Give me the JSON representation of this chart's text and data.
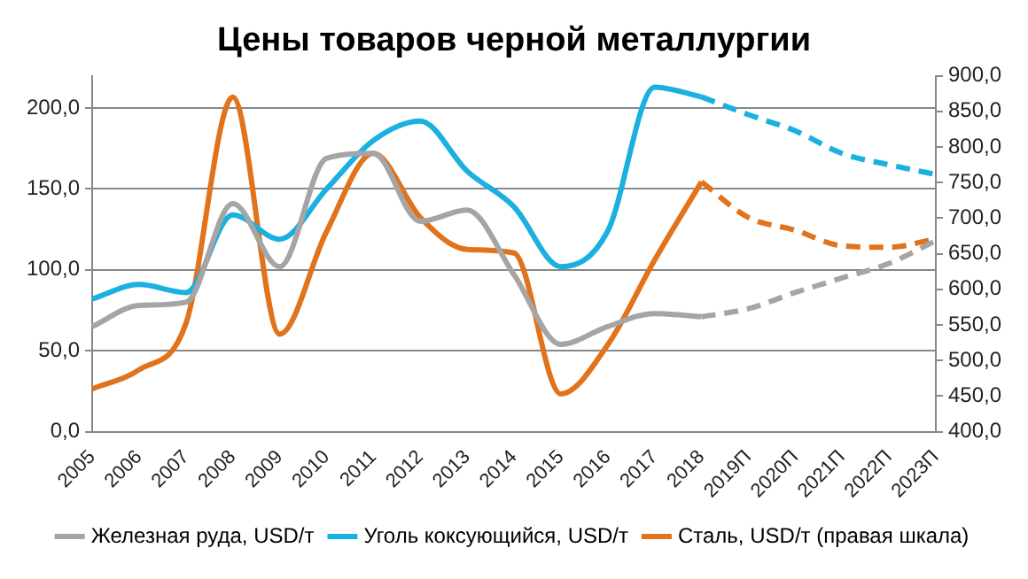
{
  "chart_data": {
    "type": "line",
    "title": "Цены товаров черной металлургии",
    "categories": [
      "2005",
      "2006",
      "2007",
      "2008",
      "2009",
      "2010",
      "2011",
      "2012",
      "2013",
      "2014",
      "2015",
      "2016",
      "2017",
      "2018",
      "2019П",
      "2020П",
      "2021П",
      "2022П",
      "2023П"
    ],
    "series": [
      {
        "name": "Железная руда, USD/т",
        "color": "#a5a5a5",
        "values": [
          65,
          78,
          80,
          141,
          102,
          169,
          172,
          130,
          137,
          97,
          54,
          65,
          73,
          71,
          null,
          null,
          null,
          null,
          null
        ]
      },
      {
        "name": "Уголь коксующийся, USD/т",
        "color": "#1ab0e0",
        "values": [
          82,
          91,
          86,
          134,
          119,
          150,
          180,
          192,
          161,
          139,
          102,
          124,
          213,
          207,
          null,
          null,
          null,
          null,
          null
        ]
      },
      {
        "name": "Сталь, USD/т (правая шкала)",
        "color": "#e0731c",
        "axis": "y2",
        "values": [
          460,
          487,
          552,
          870,
          537,
          681,
          791,
          701,
          656,
          651,
          453,
          522,
          641,
          751,
          null,
          null,
          null,
          null,
          null
        ]
      },
      {
        "color": "#a5a5a5",
        "line_style": "dashed",
        "values": [
          null,
          null,
          null,
          null,
          null,
          null,
          null,
          null,
          null,
          null,
          null,
          null,
          null,
          71,
          76,
          86,
          95,
          104,
          118
        ]
      },
      {
        "color": "#1ab0e0",
        "line_style": "dashed",
        "values": [
          null,
          null,
          null,
          null,
          null,
          null,
          null,
          null,
          null,
          null,
          null,
          null,
          null,
          207,
          196,
          186,
          172,
          165,
          159
        ]
      },
      {
        "color": "#e0731c",
        "line_style": "dashed",
        "axis": "y2",
        "values": [
          null,
          null,
          null,
          null,
          null,
          null,
          null,
          null,
          null,
          null,
          null,
          null,
          null,
          751,
          701,
          683,
          661,
          659,
          671
        ]
      }
    ],
    "ylim": [
      0,
      220
    ],
    "yticks": [
      {
        "value": 0,
        "label": "0,0"
      },
      {
        "value": 50,
        "label": "50,0"
      },
      {
        "value": 100,
        "label": "100,0"
      },
      {
        "value": 150,
        "label": "150,0"
      },
      {
        "value": 200,
        "label": "200,0"
      }
    ],
    "y2lim": [
      400,
      900
    ],
    "y2ticks": [
      {
        "value": 400,
        "label": "400,0"
      },
      {
        "value": 450,
        "label": "450,0"
      },
      {
        "value": 500,
        "label": "500,0"
      },
      {
        "value": 550,
        "label": "550,0"
      },
      {
        "value": 600,
        "label": "600,0"
      },
      {
        "value": 650,
        "label": "650,0"
      },
      {
        "value": 700,
        "label": "700,0"
      },
      {
        "value": 750,
        "label": "750,0"
      },
      {
        "value": 800,
        "label": "800,0"
      },
      {
        "value": 850,
        "label": "850,0"
      },
      {
        "value": 900,
        "label": "900,0"
      }
    ],
    "grid": "y",
    "legend": "bottom",
    "marker": "none"
  }
}
